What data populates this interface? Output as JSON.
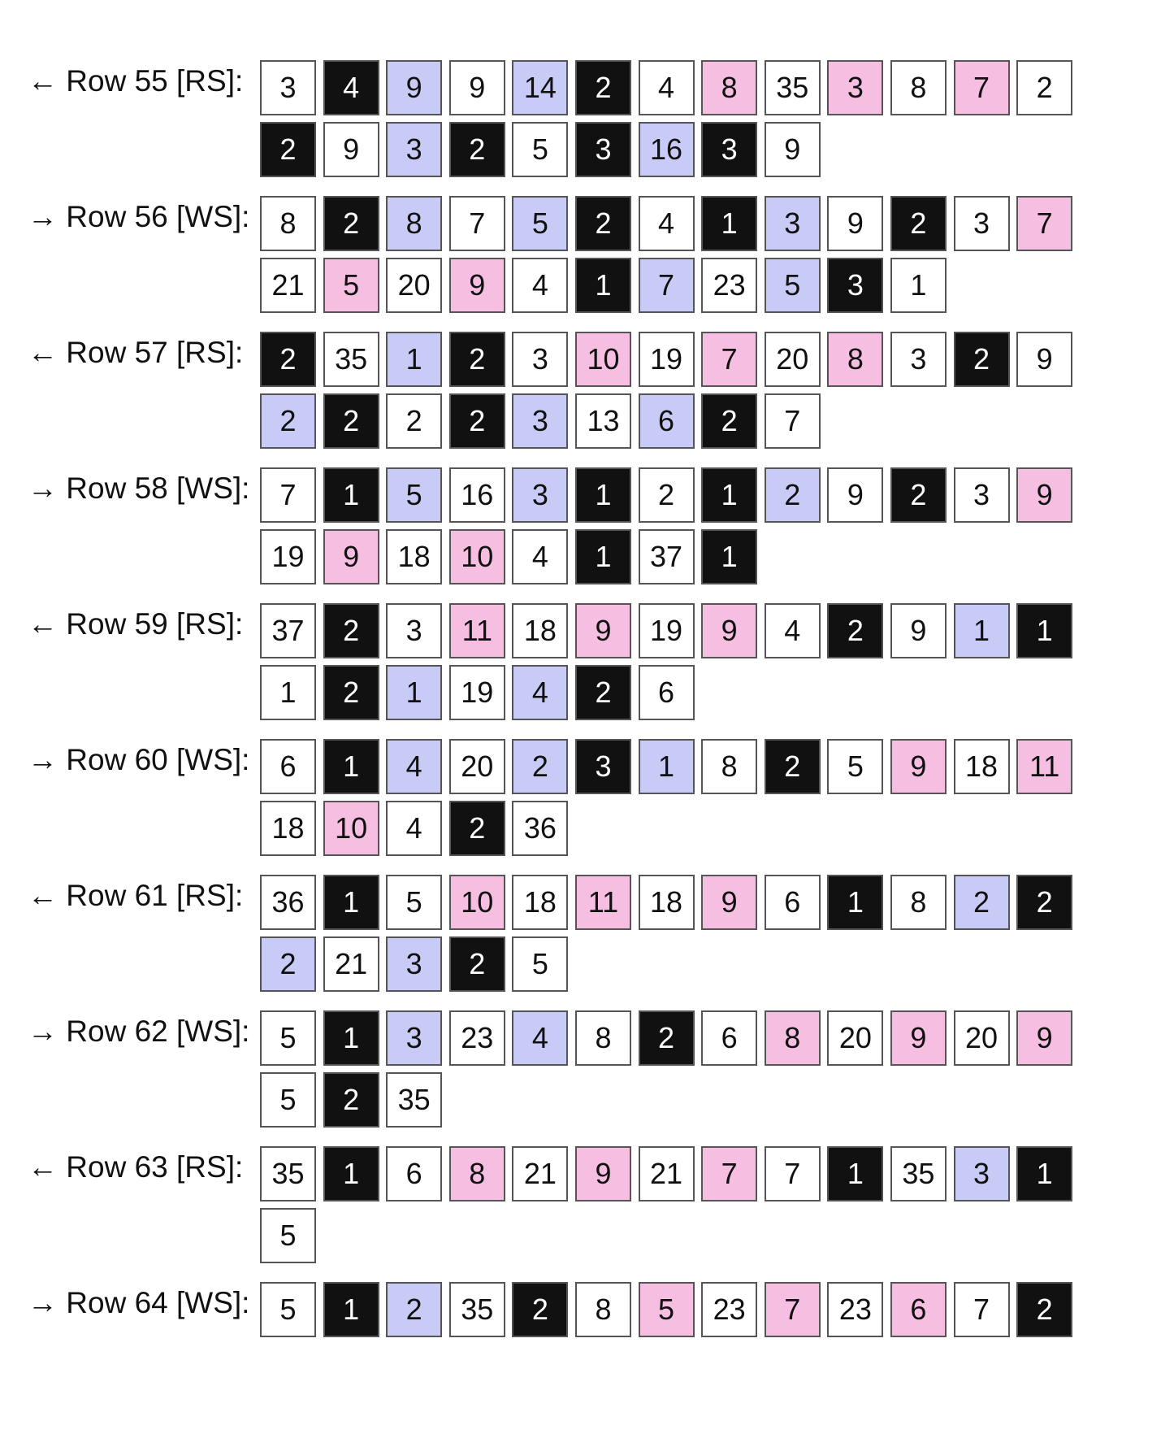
{
  "rows": [
    {
      "label": "← Row 55 [RS]:",
      "cells": [
        {
          "value": 3,
          "color": "#ffffff"
        },
        {
          "value": 4,
          "color": "#111111"
        },
        {
          "value": 9,
          "color": "#c8cbf6"
        },
        {
          "value": 9,
          "color": "#ffffff"
        },
        {
          "value": 14,
          "color": "#c8cbf6"
        },
        {
          "value": 2,
          "color": "#111111"
        },
        {
          "value": 4,
          "color": "#ffffff"
        },
        {
          "value": 8,
          "color": "#f6bfe2"
        },
        {
          "value": 35,
          "color": "#ffffff"
        },
        {
          "value": 3,
          "color": "#f6bfe2"
        },
        {
          "value": 8,
          "color": "#ffffff"
        },
        {
          "value": 7,
          "color": "#f6bfe2"
        },
        {
          "value": 2,
          "color": "#ffffff"
        },
        {
          "value": 2,
          "color": "#111111"
        },
        {
          "value": 9,
          "color": "#ffffff"
        },
        {
          "value": 3,
          "color": "#c8cbf6"
        },
        {
          "value": 2,
          "color": "#111111"
        },
        {
          "value": 5,
          "color": "#ffffff"
        },
        {
          "value": 3,
          "color": "#111111"
        },
        {
          "value": 16,
          "color": "#c8cbf6"
        },
        {
          "value": 3,
          "color": "#111111"
        },
        {
          "value": 9,
          "color": "#ffffff"
        }
      ]
    },
    {
      "label": "→ Row 56 [WS]:",
      "cells": [
        {
          "value": 8,
          "color": "#ffffff"
        },
        {
          "value": 2,
          "color": "#111111"
        },
        {
          "value": 8,
          "color": "#c8cbf6"
        },
        {
          "value": 7,
          "color": "#ffffff"
        },
        {
          "value": 5,
          "color": "#c8cbf6"
        },
        {
          "value": 2,
          "color": "#111111"
        },
        {
          "value": 4,
          "color": "#ffffff"
        },
        {
          "value": 1,
          "color": "#111111"
        },
        {
          "value": 3,
          "color": "#c8cbf6"
        },
        {
          "value": 9,
          "color": "#ffffff"
        },
        {
          "value": 2,
          "color": "#111111"
        },
        {
          "value": 3,
          "color": "#ffffff"
        },
        {
          "value": 7,
          "color": "#f6bfe2"
        },
        {
          "value": 21,
          "color": "#ffffff"
        },
        {
          "value": 5,
          "color": "#f6bfe2"
        },
        {
          "value": 20,
          "color": "#ffffff"
        },
        {
          "value": 9,
          "color": "#f6bfe2"
        },
        {
          "value": 4,
          "color": "#ffffff"
        },
        {
          "value": 1,
          "color": "#111111"
        },
        {
          "value": 7,
          "color": "#c8cbf6"
        },
        {
          "value": 23,
          "color": "#ffffff"
        },
        {
          "value": 5,
          "color": "#c8cbf6"
        },
        {
          "value": 3,
          "color": "#111111"
        },
        {
          "value": 1,
          "color": "#ffffff"
        }
      ]
    },
    {
      "label": "← Row 57 [RS]:",
      "cells": [
        {
          "value": 2,
          "color": "#111111"
        },
        {
          "value": 35,
          "color": "#ffffff"
        },
        {
          "value": 1,
          "color": "#c8cbf6"
        },
        {
          "value": 2,
          "color": "#111111"
        },
        {
          "value": 3,
          "color": "#ffffff"
        },
        {
          "value": 10,
          "color": "#f6bfe2"
        },
        {
          "value": 19,
          "color": "#ffffff"
        },
        {
          "value": 7,
          "color": "#f6bfe2"
        },
        {
          "value": 20,
          "color": "#ffffff"
        },
        {
          "value": 8,
          "color": "#f6bfe2"
        },
        {
          "value": 3,
          "color": "#ffffff"
        },
        {
          "value": 2,
          "color": "#111111"
        },
        {
          "value": 9,
          "color": "#ffffff"
        },
        {
          "value": 2,
          "color": "#c8cbf6"
        },
        {
          "value": 2,
          "color": "#111111"
        },
        {
          "value": 2,
          "color": "#ffffff"
        },
        {
          "value": 2,
          "color": "#111111"
        },
        {
          "value": 3,
          "color": "#c8cbf6"
        },
        {
          "value": 13,
          "color": "#ffffff"
        },
        {
          "value": 6,
          "color": "#c8cbf6"
        },
        {
          "value": 2,
          "color": "#111111"
        },
        {
          "value": 7,
          "color": "#ffffff"
        }
      ]
    },
    {
      "label": "→ Row 58 [WS]:",
      "cells": [
        {
          "value": 7,
          "color": "#ffffff"
        },
        {
          "value": 1,
          "color": "#111111"
        },
        {
          "value": 5,
          "color": "#c8cbf6"
        },
        {
          "value": 16,
          "color": "#ffffff"
        },
        {
          "value": 3,
          "color": "#c8cbf6"
        },
        {
          "value": 1,
          "color": "#111111"
        },
        {
          "value": 2,
          "color": "#ffffff"
        },
        {
          "value": 1,
          "color": "#111111"
        },
        {
          "value": 2,
          "color": "#c8cbf6"
        },
        {
          "value": 9,
          "color": "#ffffff"
        },
        {
          "value": 2,
          "color": "#111111"
        },
        {
          "value": 3,
          "color": "#ffffff"
        },
        {
          "value": 9,
          "color": "#f6bfe2"
        },
        {
          "value": 19,
          "color": "#ffffff"
        },
        {
          "value": 9,
          "color": "#f6bfe2"
        },
        {
          "value": 18,
          "color": "#ffffff"
        },
        {
          "value": 10,
          "color": "#f6bfe2"
        },
        {
          "value": 4,
          "color": "#ffffff"
        },
        {
          "value": 1,
          "color": "#111111"
        },
        {
          "value": 37,
          "color": "#ffffff"
        },
        {
          "value": 1,
          "color": "#111111"
        }
      ]
    },
    {
      "label": "← Row 59 [RS]:",
      "cells": [
        {
          "value": 37,
          "color": "#ffffff"
        },
        {
          "value": 2,
          "color": "#111111"
        },
        {
          "value": 3,
          "color": "#ffffff"
        },
        {
          "value": 11,
          "color": "#f6bfe2"
        },
        {
          "value": 18,
          "color": "#ffffff"
        },
        {
          "value": 9,
          "color": "#f6bfe2"
        },
        {
          "value": 19,
          "color": "#ffffff"
        },
        {
          "value": 9,
          "color": "#f6bfe2"
        },
        {
          "value": 4,
          "color": "#ffffff"
        },
        {
          "value": 2,
          "color": "#111111"
        },
        {
          "value": 9,
          "color": "#ffffff"
        },
        {
          "value": 1,
          "color": "#c8cbf6"
        },
        {
          "value": 1,
          "color": "#111111"
        },
        {
          "value": 1,
          "color": "#ffffff"
        },
        {
          "value": 2,
          "color": "#111111"
        },
        {
          "value": 1,
          "color": "#c8cbf6"
        },
        {
          "value": 19,
          "color": "#ffffff"
        },
        {
          "value": 4,
          "color": "#c8cbf6"
        },
        {
          "value": 2,
          "color": "#111111"
        },
        {
          "value": 6,
          "color": "#ffffff"
        }
      ]
    },
    {
      "label": "→ Row 60 [WS]:",
      "cells": [
        {
          "value": 6,
          "color": "#ffffff"
        },
        {
          "value": 1,
          "color": "#111111"
        },
        {
          "value": 4,
          "color": "#c8cbf6"
        },
        {
          "value": 20,
          "color": "#ffffff"
        },
        {
          "value": 2,
          "color": "#c8cbf6"
        },
        {
          "value": 3,
          "color": "#111111"
        },
        {
          "value": 1,
          "color": "#c8cbf6"
        },
        {
          "value": 8,
          "color": "#ffffff"
        },
        {
          "value": 2,
          "color": "#111111"
        },
        {
          "value": 5,
          "color": "#ffffff"
        },
        {
          "value": 9,
          "color": "#f6bfe2"
        },
        {
          "value": 18,
          "color": "#ffffff"
        },
        {
          "value": 11,
          "color": "#f6bfe2"
        },
        {
          "value": 18,
          "color": "#ffffff"
        },
        {
          "value": 10,
          "color": "#f6bfe2"
        },
        {
          "value": 4,
          "color": "#ffffff"
        },
        {
          "value": 2,
          "color": "#111111"
        },
        {
          "value": 36,
          "color": "#ffffff"
        }
      ]
    },
    {
      "label": "← Row 61 [RS]:",
      "cells": [
        {
          "value": 36,
          "color": "#ffffff"
        },
        {
          "value": 1,
          "color": "#111111"
        },
        {
          "value": 5,
          "color": "#ffffff"
        },
        {
          "value": 10,
          "color": "#f6bfe2"
        },
        {
          "value": 18,
          "color": "#ffffff"
        },
        {
          "value": 11,
          "color": "#f6bfe2"
        },
        {
          "value": 18,
          "color": "#ffffff"
        },
        {
          "value": 9,
          "color": "#f6bfe2"
        },
        {
          "value": 6,
          "color": "#ffffff"
        },
        {
          "value": 1,
          "color": "#111111"
        },
        {
          "value": 8,
          "color": "#ffffff"
        },
        {
          "value": 2,
          "color": "#c8cbf6"
        },
        {
          "value": 2,
          "color": "#111111"
        },
        {
          "value": 2,
          "color": "#c8cbf6"
        },
        {
          "value": 21,
          "color": "#ffffff"
        },
        {
          "value": 3,
          "color": "#c8cbf6"
        },
        {
          "value": 2,
          "color": "#111111"
        },
        {
          "value": 5,
          "color": "#ffffff"
        }
      ]
    },
    {
      "label": "→ Row 62 [WS]:",
      "cells": [
        {
          "value": 5,
          "color": "#ffffff"
        },
        {
          "value": 1,
          "color": "#111111"
        },
        {
          "value": 3,
          "color": "#c8cbf6"
        },
        {
          "value": 23,
          "color": "#ffffff"
        },
        {
          "value": 4,
          "color": "#c8cbf6"
        },
        {
          "value": 8,
          "color": "#ffffff"
        },
        {
          "value": 2,
          "color": "#111111"
        },
        {
          "value": 6,
          "color": "#ffffff"
        },
        {
          "value": 8,
          "color": "#f6bfe2"
        },
        {
          "value": 20,
          "color": "#ffffff"
        },
        {
          "value": 9,
          "color": "#f6bfe2"
        },
        {
          "value": 20,
          "color": "#ffffff"
        },
        {
          "value": 9,
          "color": "#f6bfe2"
        },
        {
          "value": 5,
          "color": "#ffffff"
        },
        {
          "value": 2,
          "color": "#111111"
        },
        {
          "value": 35,
          "color": "#ffffff"
        }
      ]
    },
    {
      "label": "← Row 63 [RS]:",
      "cells": [
        {
          "value": 35,
          "color": "#ffffff"
        },
        {
          "value": 1,
          "color": "#111111"
        },
        {
          "value": 6,
          "color": "#ffffff"
        },
        {
          "value": 8,
          "color": "#f6bfe2"
        },
        {
          "value": 21,
          "color": "#ffffff"
        },
        {
          "value": 9,
          "color": "#f6bfe2"
        },
        {
          "value": 21,
          "color": "#ffffff"
        },
        {
          "value": 7,
          "color": "#f6bfe2"
        },
        {
          "value": 7,
          "color": "#ffffff"
        },
        {
          "value": 1,
          "color": "#111111"
        },
        {
          "value": 35,
          "color": "#ffffff"
        },
        {
          "value": 3,
          "color": "#c8cbf6"
        },
        {
          "value": 1,
          "color": "#111111"
        },
        {
          "value": 5,
          "color": "#ffffff"
        }
      ]
    },
    {
      "label": "→ Row 64 [WS]:",
      "cells": [
        {
          "value": 5,
          "color": "#ffffff"
        },
        {
          "value": 1,
          "color": "#111111"
        },
        {
          "value": 2,
          "color": "#c8cbf6"
        },
        {
          "value": 35,
          "color": "#ffffff"
        },
        {
          "value": 2,
          "color": "#111111"
        },
        {
          "value": 8,
          "color": "#ffffff"
        },
        {
          "value": 5,
          "color": "#f6bfe2"
        },
        {
          "value": 23,
          "color": "#ffffff"
        },
        {
          "value": 7,
          "color": "#f6bfe2"
        },
        {
          "value": 23,
          "color": "#ffffff"
        },
        {
          "value": 6,
          "color": "#f6bfe2"
        },
        {
          "value": 7,
          "color": "#ffffff"
        },
        {
          "value": 2,
          "color": "#111111"
        }
      ]
    }
  ]
}
